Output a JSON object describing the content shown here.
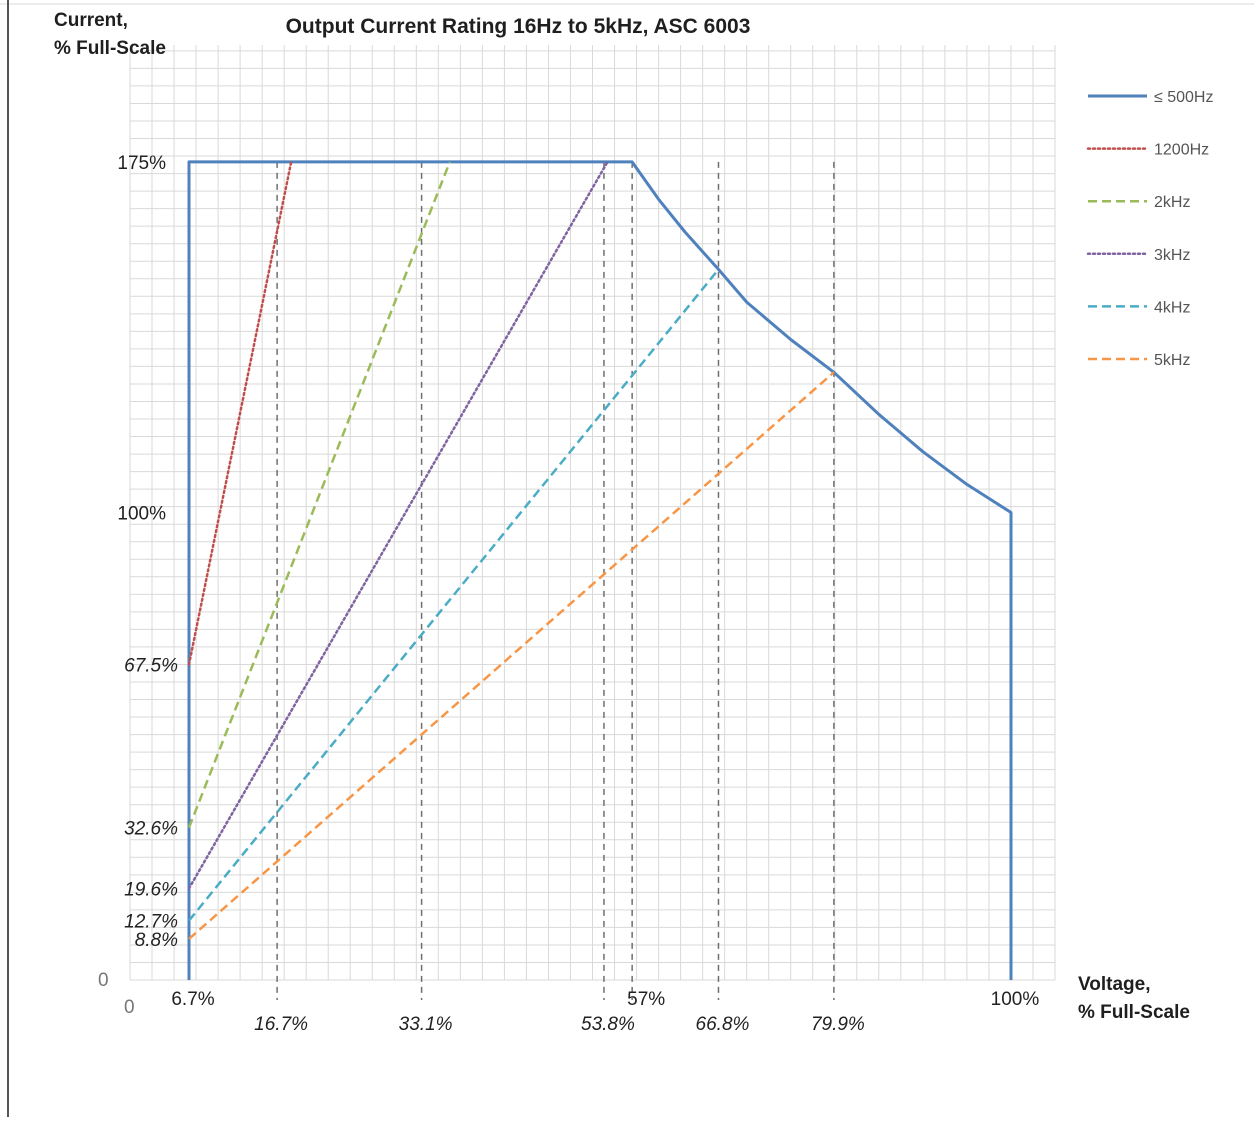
{
  "chart_data": {
    "type": "line",
    "title": "Output Current Rating 16Hz to 5kHz, ASC 6003",
    "ylabel_line1": "Current,",
    "ylabel_line2": "% Full-Scale",
    "xlabel_line1": "Voltage,",
    "xlabel_line2": "% Full-Scale",
    "xlim": [
      0,
      105
    ],
    "ylim": [
      0,
      200
    ],
    "grid": true,
    "legend_position": "right",
    "origin_labels": {
      "x": "0",
      "y": "0"
    },
    "series": [
      {
        "name": "≤ 500Hz",
        "color": "#4f81bd",
        "dash": "solid",
        "points": [
          [
            6.7,
            0
          ],
          [
            6.7,
            175
          ],
          [
            57,
            175
          ],
          [
            60,
            167
          ],
          [
            63,
            160
          ],
          [
            66.8,
            152
          ],
          [
            70,
            145
          ],
          [
            75,
            137
          ],
          [
            79.9,
            130
          ],
          [
            85,
            121
          ],
          [
            90,
            113
          ],
          [
            95,
            106
          ],
          [
            100,
            100
          ],
          [
            100,
            0
          ]
        ]
      },
      {
        "name": "1200Hz",
        "color": "#c0504d",
        "dash": "dotted",
        "points": [
          [
            6.7,
            67.5
          ],
          [
            18.3,
            175
          ]
        ]
      },
      {
        "name": "2kHz",
        "color": "#9bbb59",
        "dash": "dashed",
        "points": [
          [
            6.7,
            32.6
          ],
          [
            36.3,
            175
          ]
        ]
      },
      {
        "name": "3kHz",
        "color": "#8064a2",
        "dash": "dotted",
        "points": [
          [
            6.7,
            19.6
          ],
          [
            54.2,
            175
          ]
        ]
      },
      {
        "name": "4kHz",
        "color": "#4bacc6",
        "dash": "dashed",
        "points": [
          [
            6.7,
            12.7
          ],
          [
            66.8,
            152
          ]
        ]
      },
      {
        "name": "5kHz",
        "color": "#f79646",
        "dash": "dashed",
        "points": [
          [
            6.7,
            8.8
          ],
          [
            79.9,
            130
          ]
        ]
      }
    ],
    "y_ticks": [
      {
        "value": 175,
        "label": "175%",
        "style": "normal"
      },
      {
        "value": 100,
        "label": "100%",
        "style": "normal"
      },
      {
        "value": 67.5,
        "label": "67.5%",
        "style": "italic"
      },
      {
        "value": 32.6,
        "label": "32.6%",
        "style": "italic"
      },
      {
        "value": 19.6,
        "label": "19.6%",
        "style": "italic"
      },
      {
        "value": 12.7,
        "label": "12.7%",
        "style": "italic"
      },
      {
        "value": 8.8,
        "label": "8.8%",
        "style": "italic"
      }
    ],
    "x_ticks": [
      {
        "value": 6.7,
        "label": "6.7%",
        "style": "normal",
        "row": 0
      },
      {
        "value": 16.7,
        "label": "16.7%",
        "style": "italic",
        "row": 1
      },
      {
        "value": 33.1,
        "label": "33.1%",
        "style": "italic",
        "row": 1
      },
      {
        "value": 53.8,
        "label": "53.8%",
        "style": "italic",
        "row": 1
      },
      {
        "value": 57,
        "label": "57%",
        "style": "normal",
        "row": 0
      },
      {
        "value": 66.8,
        "label": "66.8%",
        "style": "italic",
        "row": 1
      },
      {
        "value": 79.9,
        "label": "79.9%",
        "style": "italic",
        "row": 1
      },
      {
        "value": 100,
        "label": "100%",
        "style": "normal",
        "row": 0
      }
    ],
    "reference_lines_x": [
      16.7,
      33.1,
      53.8,
      57,
      66.8,
      79.9
    ]
  }
}
